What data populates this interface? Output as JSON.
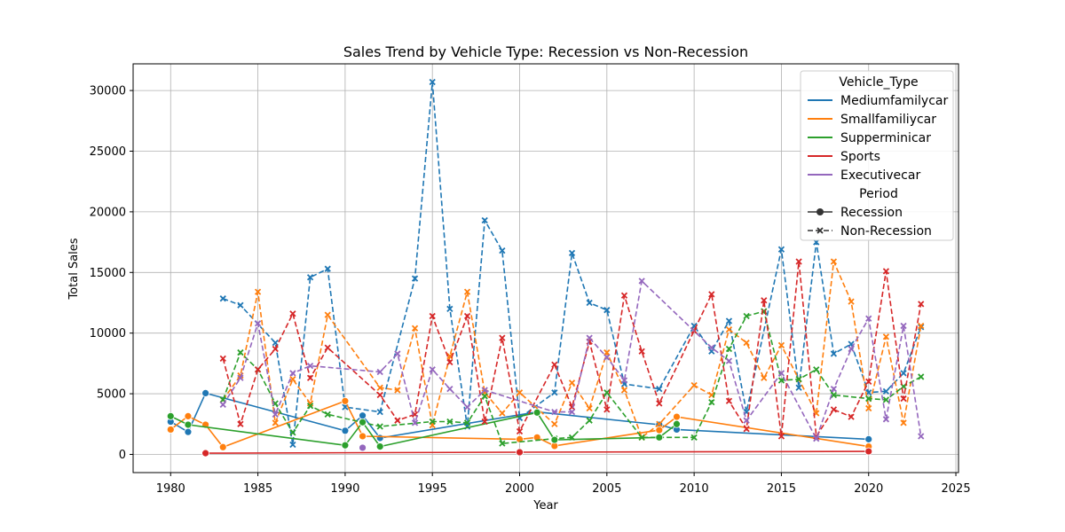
{
  "chart_data": {
    "type": "line",
    "title": "Sales Trend by Vehicle Type: Recession vs Non-Recession",
    "xlabel": "Year",
    "ylabel": "Total Sales",
    "xlim": [
      1977.85,
      2025.15
    ],
    "ylim": [
      -1500,
      32200
    ],
    "xticks": [
      1980,
      1985,
      1990,
      1995,
      2000,
      2005,
      2010,
      2015,
      2020,
      2025
    ],
    "yticks": [
      0,
      5000,
      10000,
      15000,
      20000,
      25000,
      30000
    ],
    "grid": true,
    "legend_position": "top-right",
    "legend": {
      "hue_title": "Vehicle_Type",
      "style_title": "Period",
      "style_entries": [
        {
          "label": "Recession",
          "dashed": false,
          "marker": "circle"
        },
        {
          "label": "Non-Recession",
          "dashed": true,
          "marker": "x"
        }
      ]
    },
    "series": [
      {
        "name": "Mediumfamilycar",
        "color": "#1f77b4",
        "recession": [
          [
            1980,
            2700
          ],
          [
            1981,
            1850
          ],
          [
            1982,
            5050
          ],
          [
            1990,
            1950
          ],
          [
            1991,
            3200
          ],
          [
            1992,
            1350
          ],
          [
            2001,
            3500
          ],
          [
            2008,
            2450
          ],
          [
            2009,
            2050
          ],
          [
            2020,
            1250
          ]
        ],
        "non_recession": [
          [
            1983,
            12850
          ],
          [
            1984,
            12300
          ],
          [
            1986,
            9200
          ],
          [
            1987,
            800
          ],
          [
            1988,
            14600
          ],
          [
            1989,
            15300
          ],
          [
            1990,
            3900
          ],
          [
            1992,
            3500
          ],
          [
            1994,
            14500
          ],
          [
            1995,
            30700
          ],
          [
            1996,
            12000
          ],
          [
            1997,
            2300
          ],
          [
            1998,
            19300
          ],
          [
            1999,
            16800
          ],
          [
            2000,
            3000
          ],
          [
            2002,
            5100
          ],
          [
            2003,
            16600
          ],
          [
            2004,
            12500
          ],
          [
            2005,
            11900
          ],
          [
            2006,
            5800
          ],
          [
            2008,
            5400
          ],
          [
            2010,
            10600
          ],
          [
            2011,
            8500
          ],
          [
            2012,
            11000
          ],
          [
            2013,
            3500
          ],
          [
            2015,
            16900
          ],
          [
            2016,
            5500
          ],
          [
            2017,
            17500
          ],
          [
            2018,
            8300
          ],
          [
            2019,
            9100
          ],
          [
            2020,
            5100
          ],
          [
            2021,
            5200
          ],
          [
            2022,
            6700
          ],
          [
            2023,
            10500
          ]
        ]
      },
      {
        "name": "Smallfamiliycar",
        "color": "#ff7f0e",
        "recession": [
          [
            1980,
            2050
          ],
          [
            1981,
            3150
          ],
          [
            1982,
            2450
          ],
          [
            1983,
            600
          ],
          [
            1990,
            4400
          ],
          [
            1991,
            1500
          ],
          [
            2000,
            1250
          ],
          [
            2001,
            1400
          ],
          [
            2002,
            700
          ],
          [
            2008,
            2000
          ],
          [
            2009,
            3100
          ],
          [
            2020,
            650
          ]
        ],
        "non_recession": [
          [
            1983,
            4500
          ],
          [
            1984,
            6500
          ],
          [
            1985,
            13400
          ],
          [
            1986,
            2600
          ],
          [
            1987,
            6200
          ],
          [
            1988,
            4200
          ],
          [
            1989,
            11500
          ],
          [
            1992,
            5500
          ],
          [
            1993,
            5300
          ],
          [
            1994,
            10400
          ],
          [
            1995,
            2400
          ],
          [
            1996,
            8100
          ],
          [
            1997,
            13400
          ],
          [
            1998,
            5100
          ],
          [
            1999,
            3400
          ],
          [
            2000,
            5100
          ],
          [
            2002,
            2500
          ],
          [
            2003,
            5900
          ],
          [
            2004,
            3800
          ],
          [
            2005,
            8400
          ],
          [
            2006,
            5300
          ],
          [
            2007,
            1400
          ],
          [
            2008,
            2500
          ],
          [
            2010,
            5700
          ],
          [
            2011,
            4900
          ],
          [
            2012,
            10300
          ],
          [
            2013,
            9200
          ],
          [
            2014,
            6300
          ],
          [
            2015,
            9000
          ],
          [
            2016,
            6200
          ],
          [
            2017,
            3400
          ],
          [
            2018,
            15900
          ],
          [
            2019,
            12600
          ],
          [
            2020,
            3800
          ],
          [
            2021,
            9700
          ],
          [
            2022,
            2600
          ],
          [
            2023,
            10600
          ]
        ]
      },
      {
        "name": "Supperminicar",
        "color": "#2ca02c",
        "recession": [
          [
            1980,
            3150
          ],
          [
            1981,
            2450
          ],
          [
            1990,
            750
          ],
          [
            1991,
            2650
          ],
          [
            1992,
            650
          ],
          [
            2001,
            3450
          ],
          [
            2002,
            1200
          ],
          [
            2008,
            1400
          ],
          [
            2009,
            2500
          ]
        ],
        "non_recession": [
          [
            1983,
            4500
          ],
          [
            1984,
            8400
          ],
          [
            1985,
            7000
          ],
          [
            1986,
            4200
          ],
          [
            1987,
            1800
          ],
          [
            1988,
            4000
          ],
          [
            1989,
            3300
          ],
          [
            1992,
            2300
          ],
          [
            1995,
            2700
          ],
          [
            1996,
            2700
          ],
          [
            1997,
            2600
          ],
          [
            1998,
            4800
          ],
          [
            1999,
            900
          ],
          [
            2002,
            1300
          ],
          [
            2003,
            1400
          ],
          [
            2004,
            2800
          ],
          [
            2005,
            5100
          ],
          [
            2007,
            1400
          ],
          [
            2010,
            1400
          ],
          [
            2011,
            4300
          ],
          [
            2012,
            8700
          ],
          [
            2013,
            11400
          ],
          [
            2014,
            11800
          ],
          [
            2015,
            6100
          ],
          [
            2016,
            6200
          ],
          [
            2017,
            7000
          ],
          [
            2018,
            4900
          ],
          [
            2020,
            4600
          ],
          [
            2021,
            4500
          ],
          [
            2022,
            5600
          ],
          [
            2023,
            6400
          ]
        ]
      },
      {
        "name": "Sports",
        "color": "#d62728",
        "recession": [
          [
            1982,
            100
          ],
          [
            2000,
            180
          ],
          [
            2020,
            250
          ]
        ],
        "non_recession": [
          [
            1983,
            7900
          ],
          [
            1984,
            2500
          ],
          [
            1985,
            7000
          ],
          [
            1986,
            8700
          ],
          [
            1987,
            11600
          ],
          [
            1988,
            6300
          ],
          [
            1989,
            8800
          ],
          [
            1992,
            4900
          ],
          [
            1993,
            2800
          ],
          [
            1994,
            3300
          ],
          [
            1995,
            11400
          ],
          [
            1996,
            7600
          ],
          [
            1997,
            11400
          ],
          [
            1998,
            2700
          ],
          [
            1999,
            9600
          ],
          [
            2000,
            1900
          ],
          [
            2002,
            7400
          ],
          [
            2003,
            3900
          ],
          [
            2004,
            9300
          ],
          [
            2005,
            3700
          ],
          [
            2006,
            13100
          ],
          [
            2007,
            8500
          ],
          [
            2008,
            4200
          ],
          [
            2010,
            10200
          ],
          [
            2011,
            13200
          ],
          [
            2012,
            4400
          ],
          [
            2013,
            2100
          ],
          [
            2014,
            12700
          ],
          [
            2015,
            1500
          ],
          [
            2016,
            15900
          ],
          [
            2017,
            1500
          ],
          [
            2018,
            3700
          ],
          [
            2019,
            3100
          ],
          [
            2020,
            6000
          ],
          [
            2021,
            15100
          ],
          [
            2022,
            4600
          ],
          [
            2023,
            12400
          ]
        ]
      },
      {
        "name": "Executivecar",
        "color": "#9467bd",
        "recession": [
          [
            1991,
            550
          ]
        ],
        "non_recession": [
          [
            1983,
            4100
          ],
          [
            1984,
            6300
          ],
          [
            1985,
            10800
          ],
          [
            1986,
            3300
          ],
          [
            1987,
            6700
          ],
          [
            1988,
            7300
          ],
          [
            1992,
            6800
          ],
          [
            1993,
            8300
          ],
          [
            1994,
            2600
          ],
          [
            1995,
            7000
          ],
          [
            1996,
            5400
          ],
          [
            1997,
            3900
          ],
          [
            1998,
            5300
          ],
          [
            2002,
            3500
          ],
          [
            2003,
            3500
          ],
          [
            2004,
            9600
          ],
          [
            2005,
            8000
          ],
          [
            2006,
            6100
          ],
          [
            2007,
            14300
          ],
          [
            2011,
            8800
          ],
          [
            2012,
            7700
          ],
          [
            2013,
            2800
          ],
          [
            2015,
            6700
          ],
          [
            2017,
            1300
          ],
          [
            2018,
            5400
          ],
          [
            2019,
            8700
          ],
          [
            2020,
            11200
          ],
          [
            2021,
            2900
          ],
          [
            2022,
            10600
          ],
          [
            2023,
            1500
          ]
        ]
      }
    ]
  }
}
